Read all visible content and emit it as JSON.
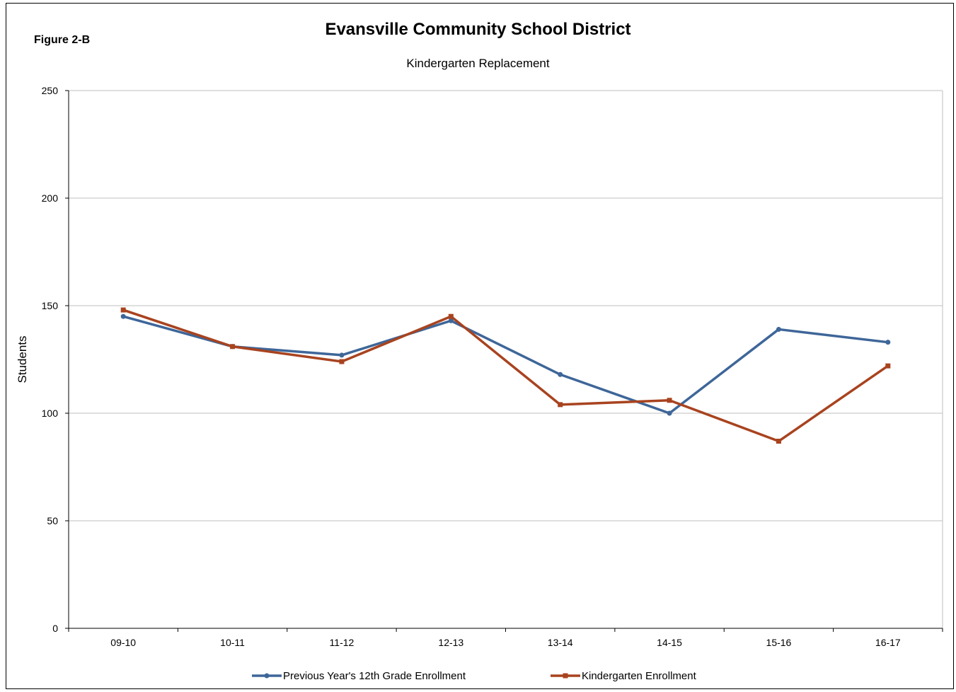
{
  "figure_label": "Figure 2-B",
  "chart_data": {
    "type": "line",
    "title": "Evansville Community School District",
    "subtitle": "Kindergarten Replacement",
    "xlabel": "",
    "ylabel": "Students",
    "categories": [
      "09-10",
      "10-11",
      "11-12",
      "12-13",
      "13-14",
      "14-15",
      "15-16",
      "16-17"
    ],
    "ylim": [
      0,
      250
    ],
    "yticks": [
      0,
      50,
      100,
      150,
      200,
      250
    ],
    "grid": true,
    "legend_position": "bottom",
    "series": [
      {
        "name": "Previous Year's 12th Grade Enrollment",
        "color": "#3E6699",
        "marker": "circle",
        "values": [
          145,
          131,
          127,
          143,
          118,
          100,
          139,
          133
        ]
      },
      {
        "name": "Kindergarten Enrollment",
        "color": "#A8431F",
        "marker": "square",
        "values": [
          148,
          131,
          124,
          145,
          104,
          106,
          87,
          122
        ]
      }
    ]
  }
}
